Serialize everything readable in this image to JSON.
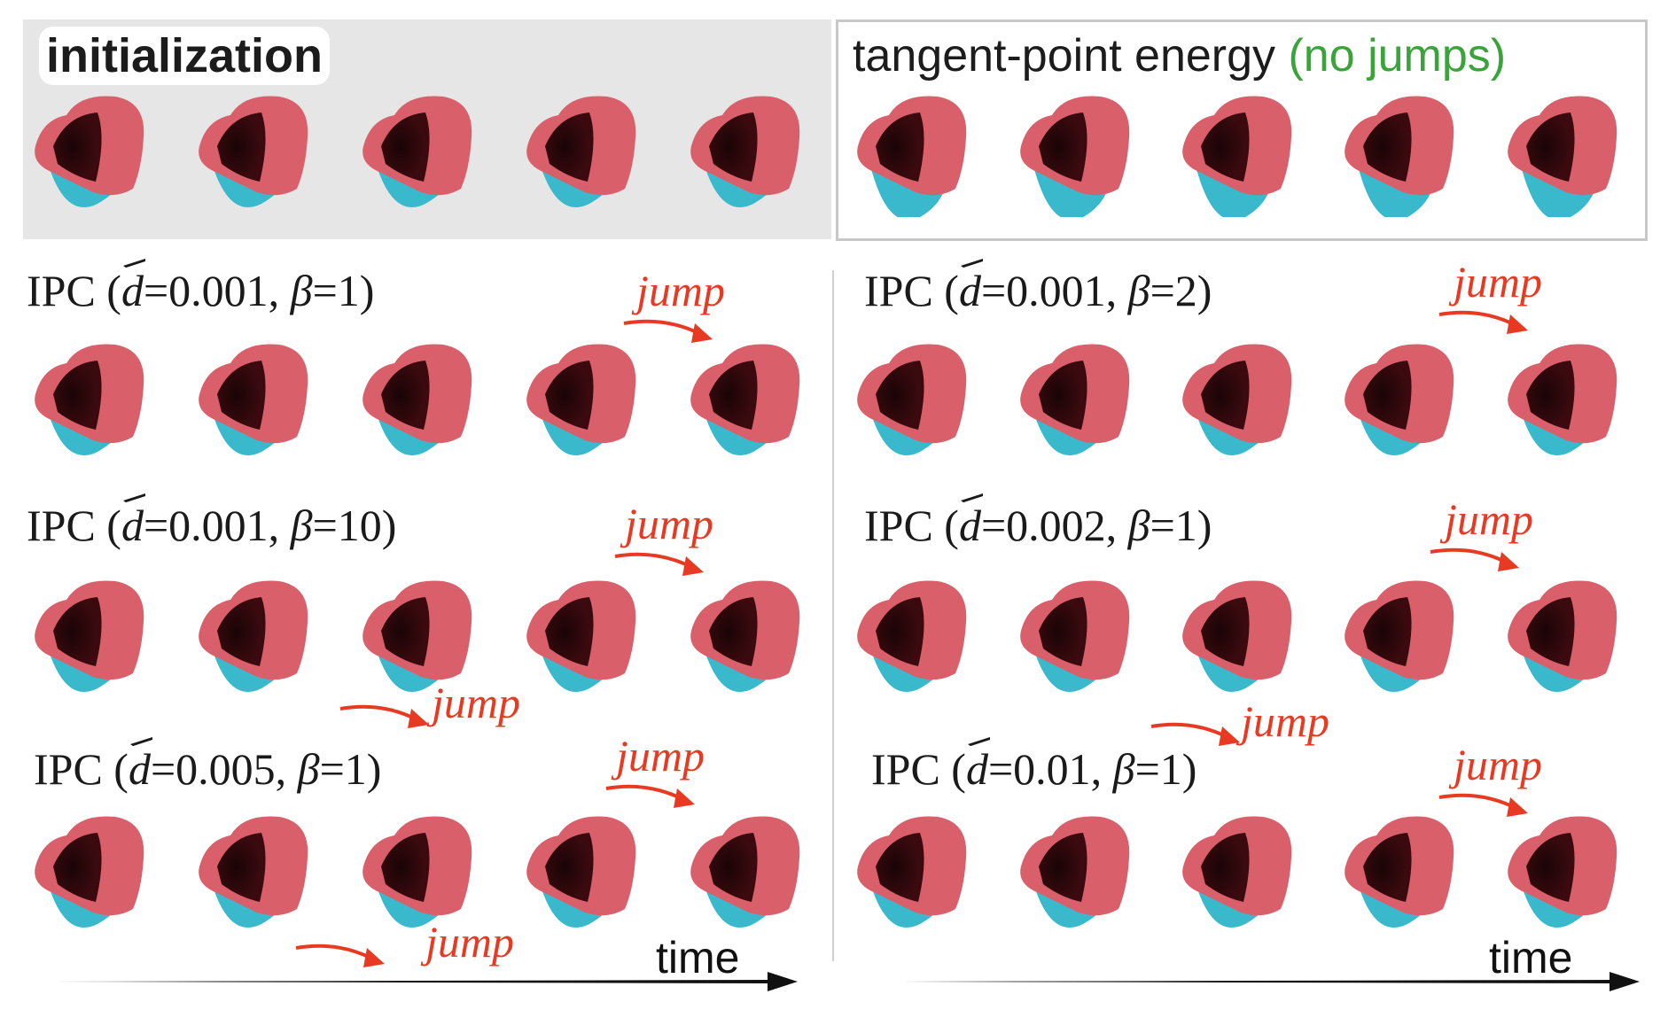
{
  "panels": {
    "initialization": {
      "title": "initialization"
    },
    "tangent_point": {
      "title": "tangent-point energy",
      "note": "(no jumps)"
    }
  },
  "rows": [
    {
      "prefix": "IPC (",
      "d": "d",
      "rest": "=0.001, ",
      "beta": "β",
      "tail": "=1)"
    },
    {
      "prefix": "IPC (",
      "d": "d",
      "rest": "=0.001, ",
      "beta": "β",
      "tail": "=2)"
    },
    {
      "prefix": "IPC (",
      "d": "d",
      "rest": "=0.001, ",
      "beta": "β",
      "tail": "=10)"
    },
    {
      "prefix": "IPC (",
      "d": "d",
      "rest": "=0.002, ",
      "beta": "β",
      "tail": "=1)"
    },
    {
      "prefix": "IPC (",
      "d": "d",
      "rest": "=0.005, ",
      "beta": "β",
      "tail": "=1)"
    },
    {
      "prefix": "IPC (",
      "d": "d",
      "rest": "=0.01, ",
      "beta": "β",
      "tail": "=1)"
    }
  ],
  "jump_label": "jump",
  "time_label": "time",
  "colors": {
    "outer": "#d9606a",
    "inner": "#3ab8cc",
    "jump": "#e83a22",
    "green": "#3aa33a"
  }
}
